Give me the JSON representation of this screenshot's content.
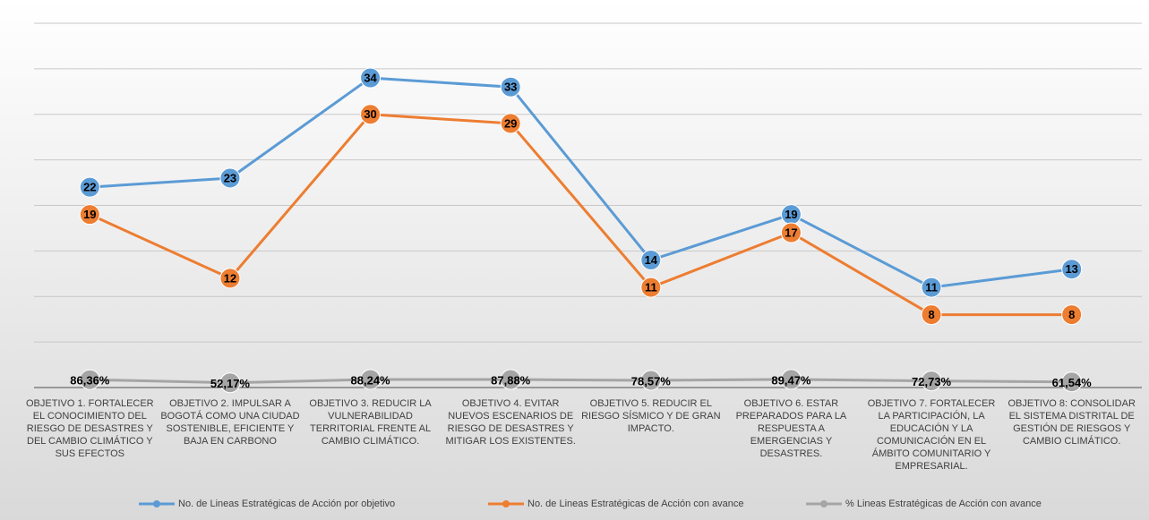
{
  "chart_data": {
    "type": "line",
    "categories": [
      "OBJETIVO  1. FORTALECER EL CONOCIMIENTO DEL RIESGO DE DESASTRES Y DEL CAMBIO CLIMÁTICO Y SUS EFECTOS",
      "OBJETIVO 2. IMPULSAR A BOGOTÁ COMO UNA CIUDAD SOSTENIBLE, EFICIENTE Y BAJA EN CARBONO",
      "OBJETIVO 3. REDUCIR LA VULNERABILIDAD TERRITORIAL FRENTE AL CAMBIO CLIMÁTICO.",
      "OBJETIVO 4. EVITAR NUEVOS ESCENARIOS DE RIESGO DE DESASTRES Y MITIGAR LOS EXISTENTES.",
      "OBJETIVO 5. REDUCIR EL RIESGO SÍSMICO Y DE GRAN IMPACTO.",
      "OBJETIVO 6. ESTAR PREPARADOS PARA LA RESPUESTA A EMERGENCIAS Y DESASTRES.",
      "OBJETIVO 7. FORTALECER LA PARTICIPACIÓN, LA EDUCACIÓN Y LA COMUNICACIÓN EN EL ÁMBITO COMUNITARIO Y EMPRESARIAL.",
      "OBJETIVO 8: CONSOLIDAR EL SISTEMA DISTRITAL DE GESTIÓN DE RIESGOS Y CAMBIO CLIMÁTICO."
    ],
    "series": [
      {
        "name": "No. de Lineas Estratégicas de Acción por objetivo",
        "color": "#5b9bd5",
        "values": [
          22,
          23,
          34,
          33,
          14,
          19,
          11,
          13
        ]
      },
      {
        "name": "No. de Lineas Estratégicas de Acción con avance",
        "color": "#ed7d31",
        "values": [
          19,
          12,
          30,
          29,
          11,
          17,
          8,
          8
        ]
      },
      {
        "name": "% Lineas Estratégicas de Acción con avance",
        "color": "#a5a5a5",
        "values": [
          0.8636,
          0.5217,
          0.8824,
          0.8788,
          0.7857,
          0.8947,
          0.7273,
          0.6154
        ],
        "value_labels": [
          "86,36%",
          "52,17%",
          "88,24%",
          "87,88%",
          "78,57%",
          "89,47%",
          "72,73%",
          "61,54%"
        ]
      }
    ],
    "ylim": [
      0,
      40
    ],
    "yticks": [
      0,
      5,
      10,
      15,
      20,
      25,
      30,
      35,
      40
    ],
    "grid": true,
    "legend": "bottom"
  }
}
